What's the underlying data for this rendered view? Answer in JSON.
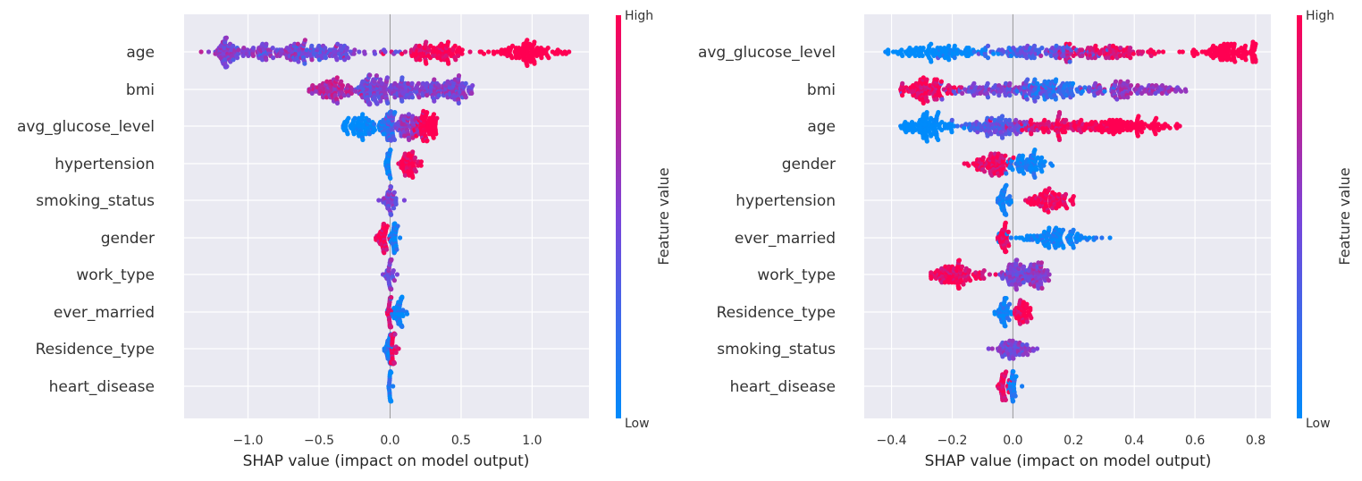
{
  "colors": {
    "low": "#008bfb",
    "mid": "#7a44d9",
    "high": "#ff0052",
    "plot_bg": "#eaeaf2",
    "grid": "#ffffff",
    "zero_line": "#999999"
  },
  "chart_data": [
    {
      "type": "scatter",
      "subtype": "shap_beeswarm",
      "title": "",
      "xlabel": "SHAP value (impact on model output)",
      "ylabel": "",
      "xlim": [
        -1.45,
        1.4
      ],
      "xticks": [
        -1.0,
        -0.5,
        0.0,
        0.5,
        1.0
      ],
      "xtick_labels": [
        "−1.0",
        "−0.5",
        "0.0",
        "0.5",
        "1.0"
      ],
      "grid": true,
      "colorbar": {
        "label": "Feature value",
        "high_label": "High",
        "low_label": "Low"
      },
      "features": [
        {
          "name": "age",
          "min": -1.33,
          "max": 1.26,
          "clusters": [
            [
              -1.15,
              0.04,
              0.75
            ],
            [
              -0.85,
              0.2,
              0.7
            ],
            [
              -0.45,
              0.18,
              0.5
            ],
            [
              0.3,
              0.12,
              0.92
            ],
            [
              0.95,
              0.12,
              0.98
            ]
          ],
          "gradient": [
            -1.0,
            1.0
          ]
        },
        {
          "name": "bmi",
          "min": -0.57,
          "max": 0.58,
          "clusters": [
            [
              -0.15,
              0.06,
              0.45
            ],
            [
              -0.4,
              0.08,
              0.7
            ],
            [
              0.05,
              0.12,
              0.5
            ],
            [
              0.4,
              0.1,
              0.5
            ]
          ],
          "gradient": [
            0,
            0
          ]
        },
        {
          "name": "avg_glucose_level",
          "min": -0.33,
          "max": 0.33,
          "clusters": [
            [
              -0.02,
              0.03,
              0.2
            ],
            [
              -0.2,
              0.07,
              0.1
            ],
            [
              0.1,
              0.07,
              0.5
            ],
            [
              0.25,
              0.05,
              0.95
            ]
          ],
          "gradient": [
            -0.2,
            0.25
          ]
        },
        {
          "name": "hypertension",
          "min": -0.03,
          "max": 0.22,
          "clusters": [
            [
              -0.01,
              0.008,
              0.03
            ],
            [
              0.13,
              0.04,
              0.98
            ]
          ],
          "gradient": [
            0,
            0
          ]
        },
        {
          "name": "smoking_status",
          "min": -0.08,
          "max": 0.1,
          "clusters": [
            [
              0.0,
              0.025,
              0.5
            ]
          ],
          "gradient": [
            0,
            0
          ]
        },
        {
          "name": "gender",
          "min": -0.1,
          "max": 0.07,
          "clusters": [
            [
              -0.05,
              0.025,
              0.95
            ],
            [
              0.03,
              0.015,
              0.05
            ]
          ],
          "gradient": [
            0,
            0
          ]
        },
        {
          "name": "work_type",
          "min": -0.05,
          "max": 0.05,
          "clusters": [
            [
              0.0,
              0.015,
              0.5
            ]
          ],
          "gradient": [
            0,
            0
          ]
        },
        {
          "name": "ever_married",
          "min": -0.02,
          "max": 0.12,
          "clusters": [
            [
              0.0,
              0.007,
              0.9
            ],
            [
              0.06,
              0.025,
              0.05
            ]
          ],
          "gradient": [
            0,
            0
          ]
        },
        {
          "name": "Residence_type",
          "min": -0.04,
          "max": 0.06,
          "clusters": [
            [
              -0.01,
              0.01,
              0.1
            ],
            [
              0.02,
              0.012,
              0.9
            ]
          ],
          "gradient": [
            0,
            0
          ]
        },
        {
          "name": "heart_disease",
          "min": -0.01,
          "max": 0.02,
          "clusters": [
            [
              0.0,
              0.004,
              0.1
            ]
          ],
          "gradient": [
            0,
            0
          ]
        }
      ]
    },
    {
      "type": "scatter",
      "subtype": "shap_beeswarm",
      "title": "",
      "xlabel": "SHAP value (impact on model output)",
      "ylabel": "",
      "xlim": [
        -0.49,
        0.85
      ],
      "xticks": [
        -0.4,
        -0.2,
        0.0,
        0.2,
        0.4,
        0.6,
        0.8
      ],
      "xtick_labels": [
        "−0.4",
        "−0.2",
        "0.0",
        "0.2",
        "0.4",
        "0.6",
        "0.8"
      ],
      "grid": true,
      "colorbar": {
        "label": "Feature value",
        "high_label": "High",
        "low_label": "Low"
      },
      "features": [
        {
          "name": "avg_glucose_level",
          "min": -0.42,
          "max": 0.8,
          "clusters": [
            [
              -0.25,
              0.09,
              0.05
            ],
            [
              0.05,
              0.12,
              0.4
            ],
            [
              0.3,
              0.1,
              0.85
            ],
            [
              0.7,
              0.06,
              0.97
            ]
          ],
          "gradient": [
            -0.3,
            0.3
          ]
        },
        {
          "name": "bmi",
          "min": -0.37,
          "max": 0.57,
          "clusters": [
            [
              -0.28,
              0.05,
              0.95
            ],
            [
              -0.05,
              0.1,
              0.5
            ],
            [
              0.15,
              0.07,
              0.2
            ],
            [
              0.4,
              0.08,
              0.6
            ]
          ],
          "gradient": [
            0,
            0
          ]
        },
        {
          "name": "age",
          "min": -0.37,
          "max": 0.55,
          "clusters": [
            [
              -0.28,
              0.05,
              0.05
            ],
            [
              -0.05,
              0.05,
              0.45
            ],
            [
              0.15,
              0.08,
              0.92
            ],
            [
              0.38,
              0.07,
              0.97
            ]
          ],
          "gradient": [
            -0.2,
            0.2
          ]
        },
        {
          "name": "gender",
          "min": -0.16,
          "max": 0.13,
          "clusters": [
            [
              -0.07,
              0.035,
              0.95
            ],
            [
              0.05,
              0.03,
              0.05
            ]
          ],
          "gradient": [
            0,
            0
          ]
        },
        {
          "name": "hypertension",
          "min": -0.05,
          "max": 0.2,
          "clusters": [
            [
              -0.03,
              0.01,
              0.03
            ],
            [
              0.12,
              0.035,
              0.98
            ]
          ],
          "gradient": [
            0,
            0
          ]
        },
        {
          "name": "ever_married",
          "min": -0.05,
          "max": 0.32,
          "clusters": [
            [
              -0.03,
              0.01,
              0.97
            ],
            [
              0.15,
              0.07,
              0.04
            ]
          ],
          "gradient": [
            0,
            0
          ]
        },
        {
          "name": "work_type",
          "min": -0.27,
          "max": 0.12,
          "clusters": [
            [
              -0.18,
              0.05,
              0.95
            ],
            [
              0.01,
              0.03,
              0.5
            ],
            [
              0.08,
              0.02,
              0.6
            ]
          ],
          "gradient": [
            0,
            0
          ]
        },
        {
          "name": "Residence_type",
          "min": -0.06,
          "max": 0.06,
          "clusters": [
            [
              -0.03,
              0.013,
              0.05
            ],
            [
              0.03,
              0.013,
              0.95
            ]
          ],
          "gradient": [
            0,
            0
          ]
        },
        {
          "name": "smoking_status",
          "min": -0.08,
          "max": 0.08,
          "clusters": [
            [
              0.0,
              0.025,
              0.5
            ]
          ],
          "gradient": [
            0,
            0
          ]
        },
        {
          "name": "heart_disease",
          "min": -0.05,
          "max": 0.03,
          "clusters": [
            [
              -0.03,
              0.01,
              0.95
            ],
            [
              0.0,
              0.006,
              0.1
            ]
          ],
          "gradient": [
            0,
            0
          ]
        }
      ]
    }
  ]
}
